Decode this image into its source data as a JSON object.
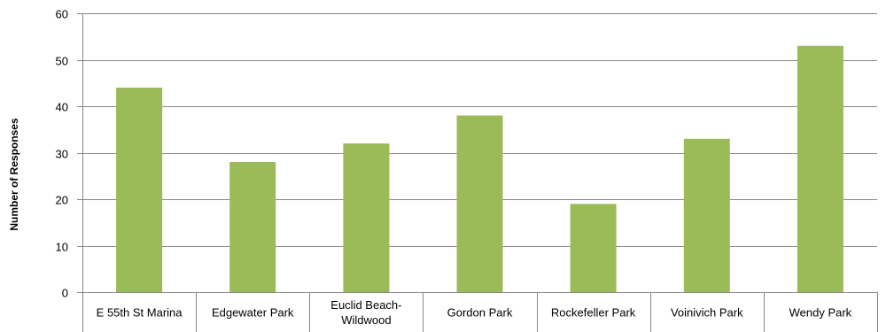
{
  "chart_data": {
    "type": "bar",
    "title": "",
    "xlabel": "",
    "ylabel": "Number of Responses",
    "categories": [
      [
        "E 55th St Marina"
      ],
      [
        "Edgewater Park"
      ],
      [
        "Euclid Beach-",
        "Wildwood"
      ],
      [
        "Gordon Park"
      ],
      [
        "Rockefeller Park"
      ],
      [
        "Voinivich Park"
      ],
      [
        "Wendy Park"
      ]
    ],
    "values": [
      44,
      28,
      32,
      38,
      19,
      33,
      53
    ],
    "ylim": [
      0,
      60
    ],
    "yticks": [
      0,
      10,
      20,
      30,
      40,
      50,
      60
    ],
    "grid": true,
    "legend": "none",
    "colors": {
      "bar": "#9BBB59",
      "grid": "#868686",
      "axis": "#868686"
    }
  }
}
